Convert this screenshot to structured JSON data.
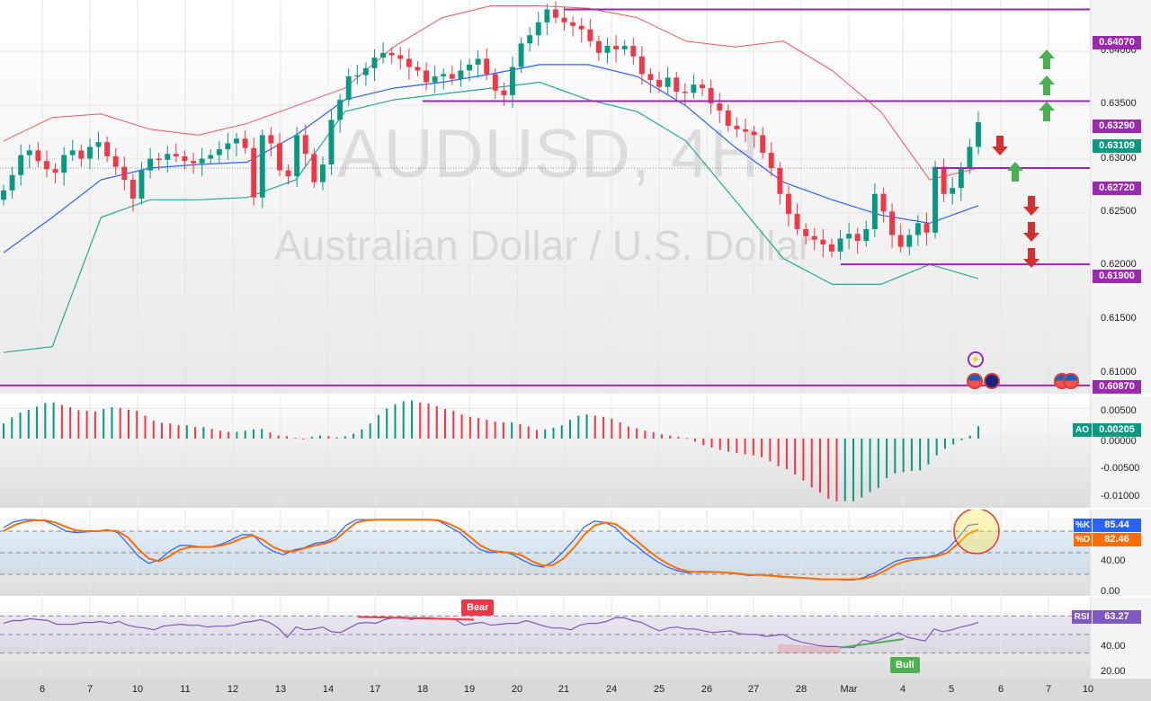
{
  "header": {
    "symbol": "AUDUSD",
    "timeframe": "4H",
    "watermark_line1": "AUDUSD, 4H",
    "watermark_line2": "Australian Dollar / U.S. Dollar"
  },
  "colors": {
    "bull": "#089981",
    "bear": "#f23645",
    "bb_upper": "#f0555f",
    "bb_basis": "#2962ff",
    "bb_lower": "#22ab94",
    "level": "#9c27b0",
    "stoch_k": "#2962ff",
    "stoch_d": "#ff6d00",
    "rsi": "#7e57c2",
    "arrow_up": "#4caf50",
    "arrow_down": "#d32f2f"
  },
  "price_axis": {
    "ticks": [
      "0.64000",
      "0.63500",
      "0.63000",
      "0.62500",
      "0.62000",
      "0.61500",
      "0.61000"
    ],
    "levels": [
      {
        "label": "0.64070",
        "kind": "resistance"
      },
      {
        "label": "0.63290",
        "kind": "resistance"
      },
      {
        "label": "0.63109",
        "kind": "current-price"
      },
      {
        "label": "0.62720",
        "kind": "pivot"
      },
      {
        "label": "0.61900",
        "kind": "support"
      },
      {
        "label": "0.60870",
        "kind": "support"
      }
    ]
  },
  "ao_axis": {
    "ticks": [
      "0.00500",
      "0.00000",
      "-0.00500",
      "-0.01000"
    ],
    "name": "AO",
    "value": "0.00205"
  },
  "stoch_axis": {
    "ticks": [
      "40.00",
      "0.00"
    ],
    "k_name": "%K",
    "k_value": "85.44",
    "d_name": "%D",
    "d_value": "82.46"
  },
  "rsi_axis": {
    "ticks": [
      "40.00",
      "20.00"
    ],
    "name": "RSI",
    "value": "63.27"
  },
  "annotations": {
    "bear_label": "Bear",
    "bull_label": "Bull",
    "event_lightning": "⚡"
  },
  "time_axis": {
    "labels": [
      "6",
      "7",
      "10",
      "11",
      "12",
      "13",
      "14",
      "17",
      "18",
      "19",
      "20",
      "21",
      "24",
      "25",
      "26",
      "27",
      "28",
      "Mar",
      "4",
      "5",
      "6",
      "7",
      "10"
    ]
  },
  "chart_data": [
    {
      "type": "candlestick",
      "title": "AUDUSD, 4H — Australian Dollar / U.S. Dollar",
      "ylim": [
        0.608,
        0.6415
      ],
      "x_ticks": [
        "6",
        "7",
        "10",
        "11",
        "12",
        "13",
        "14",
        "17",
        "18",
        "19",
        "20",
        "21",
        "24",
        "25",
        "26",
        "27",
        "28",
        "Mar",
        "4",
        "5",
        "6",
        "7",
        "10"
      ],
      "horizontal_levels": [
        0.6407,
        0.6329,
        0.6272,
        0.619,
        0.6087
      ],
      "last_price": 0.63109,
      "indicators": [
        "Bollinger Bands (upper, basis, lower)"
      ],
      "close_approx": [
        0.6253,
        0.6266,
        0.6283,
        0.6287,
        0.6278,
        0.6271,
        0.6268,
        0.6283,
        0.6287,
        0.628,
        0.629,
        0.6294,
        0.6282,
        0.6273,
        0.6262,
        0.6246,
        0.627,
        0.628,
        0.6279,
        0.6284,
        0.6282,
        0.6278,
        0.6276,
        0.628,
        0.6283,
        0.6288,
        0.6293,
        0.6297,
        0.6289,
        0.6247,
        0.63,
        0.6293,
        0.627,
        0.6265,
        0.63,
        0.6284,
        0.626,
        0.6275,
        0.6313,
        0.633,
        0.635,
        0.6351,
        0.6357,
        0.6366,
        0.637,
        0.6368,
        0.6365,
        0.6358,
        0.6355,
        0.6345,
        0.635,
        0.6352,
        0.6348,
        0.6355,
        0.636,
        0.6365,
        0.6352,
        0.6338,
        0.6334,
        0.6358,
        0.6378,
        0.6385,
        0.6396,
        0.6407,
        0.64,
        0.6396,
        0.6393,
        0.639,
        0.638,
        0.637,
        0.6376,
        0.6373,
        0.6376,
        0.6367,
        0.6352,
        0.6347,
        0.6341,
        0.6349,
        0.6337,
        0.6336,
        0.6343,
        0.634,
        0.6327,
        0.6321,
        0.6308,
        0.6305,
        0.6303,
        0.63,
        0.6285,
        0.6272,
        0.625,
        0.6233,
        0.622,
        0.6214,
        0.6211,
        0.6207,
        0.6201,
        0.6212,
        0.6216,
        0.621,
        0.622,
        0.625,
        0.6235,
        0.6215,
        0.6205,
        0.6215,
        0.6225,
        0.6217,
        0.6273,
        0.625,
        0.6255,
        0.6272,
        0.629,
        0.6311
      ],
      "bb_upper_approx": [
        0.6295,
        0.6315,
        0.6318,
        0.6305,
        0.63,
        0.631,
        0.6325,
        0.634,
        0.6375,
        0.64,
        0.641,
        0.641,
        0.6408,
        0.64,
        0.638,
        0.6375,
        0.638,
        0.6355,
        0.632,
        0.6262,
        0.6272
      ],
      "bb_basis_approx": [
        0.62,
        0.623,
        0.6262,
        0.6272,
        0.6275,
        0.6277,
        0.63,
        0.633,
        0.634,
        0.6345,
        0.6352,
        0.636,
        0.636,
        0.635,
        0.6325,
        0.629,
        0.626,
        0.6245,
        0.6232,
        0.6225,
        0.624
      ],
      "bb_lower_approx": [
        0.6115,
        0.612,
        0.623,
        0.6245,
        0.6245,
        0.6247,
        0.6262,
        0.632,
        0.633,
        0.6335,
        0.634,
        0.6345,
        0.633,
        0.632,
        0.6295,
        0.6245,
        0.6195,
        0.6173,
        0.6173,
        0.619,
        0.6178
      ]
    },
    {
      "type": "bar",
      "title": "Awesome Oscillator (AO)",
      "ylim": [
        -0.0115,
        0.007
      ],
      "last_value": 0.00205,
      "values_approx": [
        0.0025,
        0.0035,
        0.0043,
        0.0048,
        0.0053,
        0.0059,
        0.006,
        0.0056,
        0.0052,
        0.0047,
        0.0046,
        0.0045,
        0.0049,
        0.0052,
        0.0051,
        0.0048,
        0.0046,
        0.0038,
        0.003,
        0.0026,
        0.0025,
        0.0022,
        0.0022,
        0.0019,
        0.0019,
        0.0016,
        0.0013,
        0.0011,
        0.0011,
        0.0013,
        0.0015,
        0.0016,
        0.001,
        0.0005,
        0.0004,
        0.0001,
        0.0,
        0.0003,
        0.0005,
        0.0004,
        0.0002,
        0.0004,
        0.0008,
        0.0015,
        0.0025,
        0.0039,
        0.005,
        0.0057,
        0.0062,
        0.0063,
        0.006,
        0.0058,
        0.0054,
        0.0049,
        0.0046,
        0.004,
        0.0036,
        0.0034,
        0.0031,
        0.0028,
        0.0027,
        0.0027,
        0.0024,
        0.002,
        0.0014,
        0.0015,
        0.0018,
        0.0022,
        0.0031,
        0.0038,
        0.004,
        0.0038,
        0.0036,
        0.0033,
        0.0027,
        0.002,
        0.0017,
        0.0013,
        0.001,
        0.0007,
        0.0005,
        0.0003,
        0.0001,
        -0.0005,
        -0.0011,
        -0.0015,
        -0.0019,
        -0.0022,
        -0.0024,
        -0.0026,
        -0.0028,
        -0.0031,
        -0.0038,
        -0.0046,
        -0.0051,
        -0.006,
        -0.007,
        -0.0081,
        -0.009,
        -0.01,
        -0.0104,
        -0.0104,
        -0.0104,
        -0.0098,
        -0.0089,
        -0.0082,
        -0.0066,
        -0.0058,
        -0.0056,
        -0.0054,
        -0.0053,
        -0.0043,
        -0.0028,
        -0.0017,
        -0.001,
        -0.0003,
        0.0005,
        0.00205
      ]
    },
    {
      "type": "line",
      "title": "Stochastic (%K, %D)",
      "ylim": [
        0,
        100
      ],
      "bands": [
        20,
        50,
        80
      ],
      "last_values": {
        "%K": 85.44,
        "%D": 82.46
      },
      "series": [
        {
          "name": "%K",
          "values_approx": [
            85,
            93,
            96,
            96,
            94,
            88,
            80,
            78,
            79,
            80,
            82,
            78,
            62,
            45,
            35,
            40,
            52,
            60,
            60,
            58,
            58,
            62,
            68,
            75,
            75,
            61,
            52,
            47,
            54,
            57,
            63,
            65,
            72,
            88,
            96,
            96,
            96,
            96,
            96,
            96,
            96,
            96,
            94,
            86,
            78,
            65,
            54,
            50,
            52,
            48,
            40,
            33,
            30,
            38,
            52,
            68,
            86,
            94,
            92,
            85,
            70,
            60,
            48,
            38,
            30,
            25,
            22,
            24,
            24,
            23,
            22,
            20,
            18,
            20,
            18,
            16,
            16,
            15,
            14,
            13,
            13,
            12,
            12,
            16,
            22,
            30,
            38,
            42,
            43,
            44,
            47,
            55,
            70,
            88,
            90
          ]
        },
        {
          "name": "%D",
          "values_approx": [
            80,
            88,
            93,
            95,
            95,
            92,
            86,
            81,
            80,
            80,
            81,
            80,
            71,
            55,
            42,
            38,
            45,
            54,
            58,
            58,
            58,
            60,
            64,
            70,
            74,
            68,
            58,
            52,
            52,
            56,
            60,
            63,
            68,
            80,
            92,
            95,
            96,
            96,
            96,
            96,
            96,
            96,
            95,
            90,
            83,
            72,
            60,
            53,
            51,
            50,
            46,
            38,
            32,
            33,
            42,
            57,
            75,
            88,
            92,
            90,
            80,
            67,
            55,
            44,
            35,
            28,
            24,
            23,
            23,
            23,
            22,
            21,
            19,
            19,
            18,
            17,
            16,
            15,
            14,
            13,
            13,
            13,
            13,
            14,
            18,
            25,
            33,
            38,
            41,
            43,
            45,
            50,
            62,
            76,
            82
          ]
        }
      ]
    },
    {
      "type": "line",
      "title": "RSI",
      "ylim": [
        0,
        100
      ],
      "bands": [
        30,
        50,
        70
      ],
      "last_value": 63.27,
      "divergences": [
        {
          "label": "Bear",
          "type": "bearish"
        },
        {
          "label": "Bull",
          "type": "bullish"
        }
      ],
      "values_approx": [
        62,
        65,
        65,
        67,
        66,
        65,
        61,
        61,
        61,
        63,
        63,
        64,
        62,
        64,
        60,
        58,
        57,
        55,
        59,
        60,
        61,
        60,
        60,
        58,
        59,
        59,
        60,
        63,
        64,
        66,
        63,
        57,
        47,
        58,
        55,
        56,
        58,
        53,
        52,
        57,
        62,
        63,
        62,
        66,
        68,
        69,
        66,
        68,
        68,
        67,
        67,
        66,
        60,
        62,
        63,
        60,
        61,
        62,
        62,
        65,
        62,
        59,
        57,
        57,
        55,
        60,
        62,
        62,
        64,
        68,
        68,
        65,
        63,
        58,
        54,
        57,
        58,
        56,
        56,
        54,
        52,
        53,
        54,
        51,
        50,
        50,
        48,
        49,
        50,
        45,
        42,
        40,
        38,
        37,
        37,
        36,
        36,
        44,
        42,
        45,
        48,
        52,
        47,
        45,
        43,
        56,
        53,
        55,
        58,
        60,
        63
      ]
    }
  ]
}
